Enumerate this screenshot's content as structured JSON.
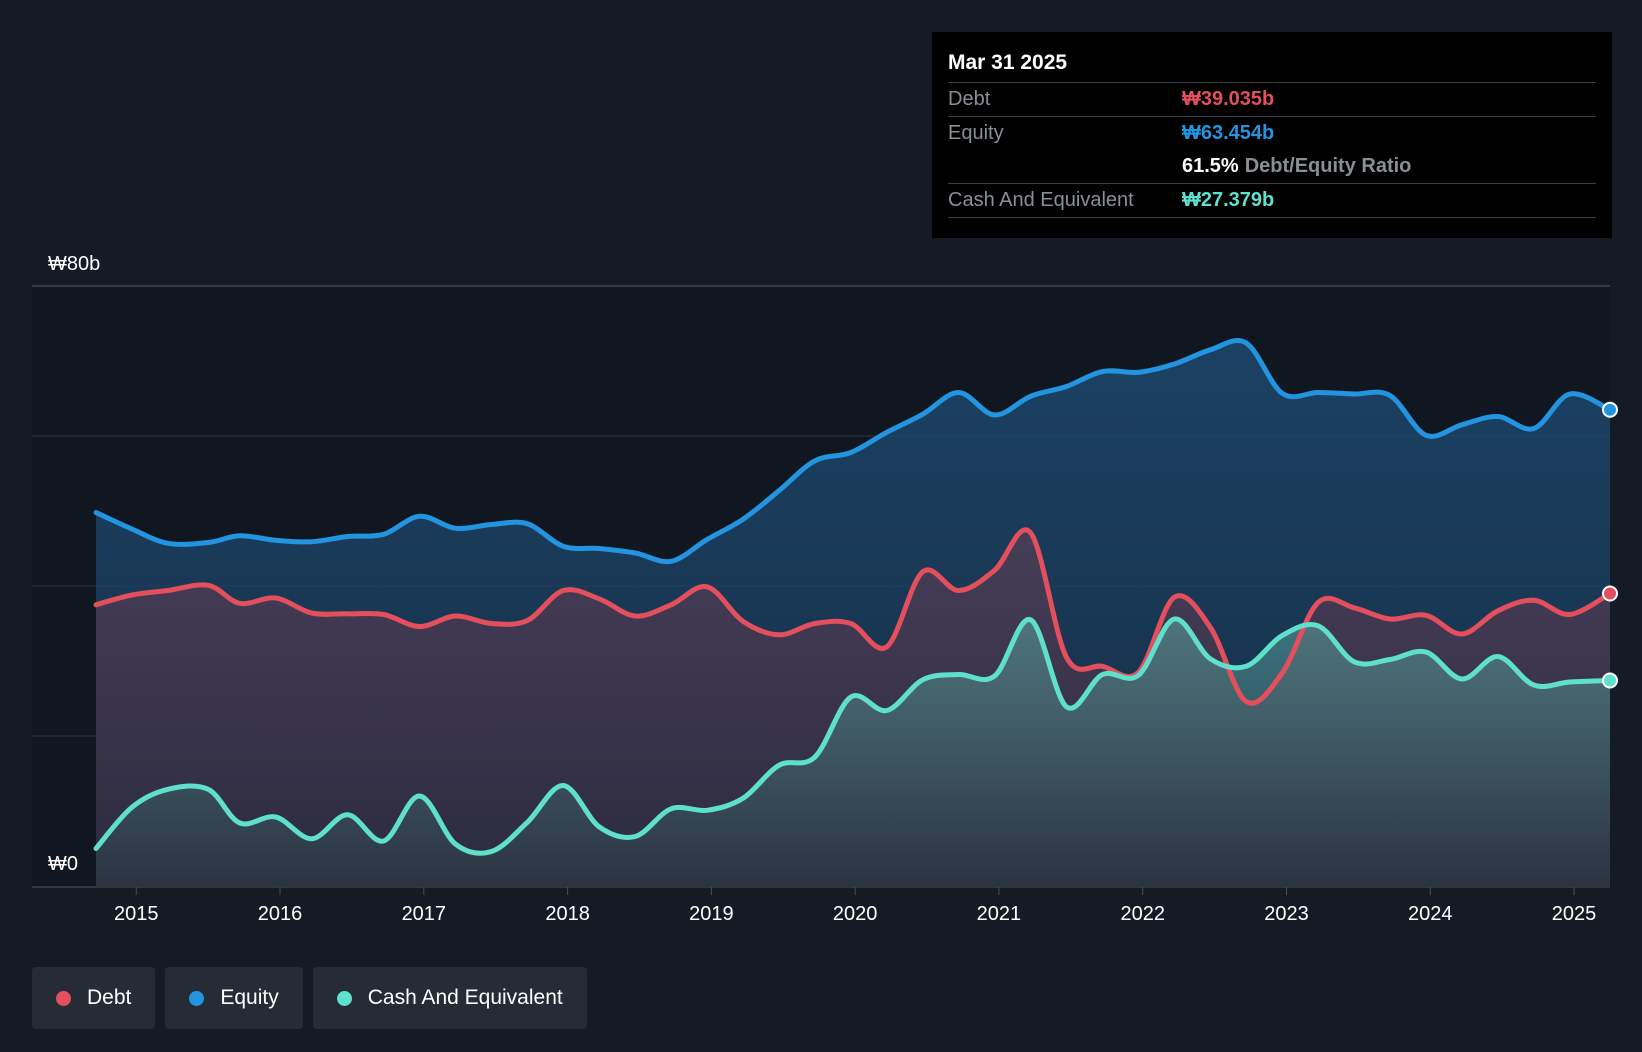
{
  "chart_data": {
    "type": "area",
    "title": "",
    "ylim": [
      0,
      80
    ],
    "y_ticks": [
      {
        "value": 80,
        "label": "₩80b"
      },
      {
        "value": 0,
        "label": "₩0"
      }
    ],
    "gridlines": [
      20,
      40,
      60,
      80
    ],
    "xlim": [
      2014.72,
      2025.25
    ],
    "x_ticks": [
      "2015",
      "2016",
      "2017",
      "2018",
      "2019",
      "2020",
      "2021",
      "2022",
      "2023",
      "2024",
      "2025"
    ],
    "series": [
      {
        "name": "Equity",
        "color": "#2394df",
        "points": [
          [
            2014.72,
            49.8
          ],
          [
            2014.97,
            47.6
          ],
          [
            2015.22,
            45.7
          ],
          [
            2015.5,
            45.8
          ],
          [
            2015.72,
            46.7
          ],
          [
            2015.97,
            46.1
          ],
          [
            2016.22,
            45.9
          ],
          [
            2016.47,
            46.6
          ],
          [
            2016.72,
            46.9
          ],
          [
            2016.97,
            49.3
          ],
          [
            2017.22,
            47.7
          ],
          [
            2017.47,
            48.2
          ],
          [
            2017.72,
            48.3
          ],
          [
            2017.97,
            45.3
          ],
          [
            2018.22,
            45
          ],
          [
            2018.47,
            44.4
          ],
          [
            2018.72,
            43.3
          ],
          [
            2018.97,
            46.2
          ],
          [
            2019.22,
            48.9
          ],
          [
            2019.47,
            52.7
          ],
          [
            2019.72,
            56.7
          ],
          [
            2019.97,
            57.8
          ],
          [
            2020.22,
            60.5
          ],
          [
            2020.47,
            62.9
          ],
          [
            2020.72,
            65.8
          ],
          [
            2020.97,
            62.8
          ],
          [
            2021.22,
            65.3
          ],
          [
            2021.47,
            66.6
          ],
          [
            2021.72,
            68.6
          ],
          [
            2021.97,
            68.5
          ],
          [
            2022.22,
            69.6
          ],
          [
            2022.47,
            71.5
          ],
          [
            2022.72,
            72.4
          ],
          [
            2022.97,
            65.7
          ],
          [
            2023.22,
            65.8
          ],
          [
            2023.47,
            65.6
          ],
          [
            2023.72,
            65.4
          ],
          [
            2023.97,
            60.1
          ],
          [
            2024.22,
            61.5
          ],
          [
            2024.47,
            62.6
          ],
          [
            2024.72,
            61
          ],
          [
            2024.97,
            65.6
          ],
          [
            2025.25,
            63.5
          ]
        ]
      },
      {
        "name": "Debt",
        "color": "#e34f5c",
        "points": [
          [
            2014.72,
            37.5
          ],
          [
            2014.97,
            38.8
          ],
          [
            2015.22,
            39.4
          ],
          [
            2015.5,
            40.1
          ],
          [
            2015.72,
            37.7
          ],
          [
            2015.97,
            38.4
          ],
          [
            2016.22,
            36.4
          ],
          [
            2016.47,
            36.3
          ],
          [
            2016.72,
            36.2
          ],
          [
            2016.97,
            34.6
          ],
          [
            2017.22,
            36
          ],
          [
            2017.47,
            35
          ],
          [
            2017.72,
            35.4
          ],
          [
            2017.97,
            39.4
          ],
          [
            2018.22,
            38.3
          ],
          [
            2018.47,
            36
          ],
          [
            2018.72,
            37.5
          ],
          [
            2018.97,
            39.9
          ],
          [
            2019.22,
            35.3
          ],
          [
            2019.47,
            33.5
          ],
          [
            2019.72,
            35
          ],
          [
            2019.97,
            35
          ],
          [
            2020.22,
            31.9
          ],
          [
            2020.47,
            41.9
          ],
          [
            2020.72,
            39.4
          ],
          [
            2020.97,
            42.1
          ],
          [
            2021.22,
            47.1
          ],
          [
            2021.47,
            30.5
          ],
          [
            2021.72,
            29.3
          ],
          [
            2021.97,
            28.5
          ],
          [
            2022.22,
            38.5
          ],
          [
            2022.47,
            34.5
          ],
          [
            2022.72,
            24.6
          ],
          [
            2022.97,
            28.4
          ],
          [
            2023.22,
            37.8
          ],
          [
            2023.47,
            37.1
          ],
          [
            2023.72,
            35.6
          ],
          [
            2023.97,
            36.1
          ],
          [
            2024.22,
            33.6
          ],
          [
            2024.47,
            36.7
          ],
          [
            2024.72,
            38.1
          ],
          [
            2024.97,
            36.2
          ],
          [
            2025.25,
            39
          ]
        ]
      },
      {
        "name": "Cash And Equivalent",
        "color": "#5ee0cd",
        "points": [
          [
            2014.72,
            5
          ],
          [
            2014.97,
            10.5
          ],
          [
            2015.22,
            12.9
          ],
          [
            2015.5,
            12.9
          ],
          [
            2015.72,
            8.4
          ],
          [
            2015.97,
            9.2
          ],
          [
            2016.22,
            6.3
          ],
          [
            2016.47,
            9.5
          ],
          [
            2016.72,
            6
          ],
          [
            2016.97,
            12
          ],
          [
            2017.22,
            5.6
          ],
          [
            2017.47,
            4.6
          ],
          [
            2017.72,
            8.5
          ],
          [
            2017.97,
            13.4
          ],
          [
            2018.22,
            7.9
          ],
          [
            2018.47,
            6.6
          ],
          [
            2018.72,
            10.3
          ],
          [
            2018.97,
            10.1
          ],
          [
            2019.22,
            11.7
          ],
          [
            2019.47,
            16.1
          ],
          [
            2019.72,
            17.2
          ],
          [
            2019.97,
            25.2
          ],
          [
            2020.22,
            23.4
          ],
          [
            2020.47,
            27.5
          ],
          [
            2020.72,
            28.2
          ],
          [
            2020.97,
            28
          ],
          [
            2021.22,
            35.5
          ],
          [
            2021.47,
            23.9
          ],
          [
            2021.72,
            28.2
          ],
          [
            2021.97,
            28.1
          ],
          [
            2022.22,
            35.6
          ],
          [
            2022.47,
            30.3
          ],
          [
            2022.72,
            29.3
          ],
          [
            2022.97,
            33.4
          ],
          [
            2023.22,
            34.7
          ],
          [
            2023.47,
            29.9
          ],
          [
            2023.72,
            30.2
          ],
          [
            2023.97,
            31.2
          ],
          [
            2024.22,
            27.6
          ],
          [
            2024.47,
            30.6
          ],
          [
            2024.72,
            26.8
          ],
          [
            2024.97,
            27.2
          ],
          [
            2025.25,
            27.4
          ]
        ]
      }
    ]
  },
  "tooltip": {
    "date": "Mar 31 2025",
    "rows": [
      {
        "label": "Debt",
        "value": "₩39.035b",
        "color": "#e34f5c"
      },
      {
        "label": "Equity",
        "value": "₩63.454b",
        "color": "#2394df"
      },
      {
        "label": "",
        "value": "61.5%",
        "extra": "Debt/Equity Ratio",
        "color": "#ffffff"
      },
      {
        "label": "Cash And Equivalent",
        "value": "₩27.379b",
        "color": "#5ee0cd"
      }
    ]
  },
  "legend": [
    {
      "label": "Debt",
      "color": "#e34f5c"
    },
    {
      "label": "Equity",
      "color": "#2394df"
    },
    {
      "label": "Cash And Equivalent",
      "color": "#5ee0cd"
    }
  ]
}
